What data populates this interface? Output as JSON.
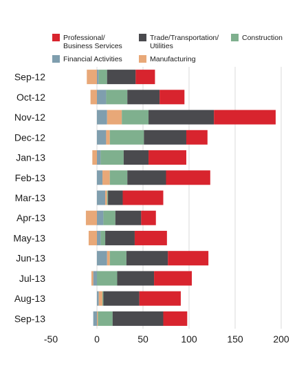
{
  "chart_data": {
    "type": "bar",
    "orientation": "horizontal",
    "stacked": true,
    "title": "",
    "xlabel": "",
    "ylabel": "",
    "xlim": [
      -50,
      200
    ],
    "xticks": [
      -50,
      0,
      50,
      100,
      150,
      200
    ],
    "grid": "vertical",
    "legend_position": "top",
    "categories": [
      "Sep-12",
      "Oct-12",
      "Nov-12",
      "Dec-12",
      "Jan-13",
      "Feb-13",
      "Mar-13",
      "Apr-13",
      "May-13",
      "Jun-13",
      "Jul-13",
      "Aug-13",
      "Sep-13"
    ],
    "series": [
      {
        "name": "Financial Activities",
        "legend_lines": [
          "Financial Activities"
        ],
        "color": "#7f9eae",
        "values": [
          2,
          10,
          11,
          10,
          4,
          6,
          9,
          7,
          4,
          11,
          -4,
          2,
          -4
        ]
      },
      {
        "name": "Manufacturing",
        "legend_lines": [
          "Manufacturing"
        ],
        "color": "#e8a878",
        "values": [
          -11,
          -7,
          16,
          4,
          -5,
          8,
          2,
          -12,
          -9,
          3,
          -2,
          4,
          1
        ]
      },
      {
        "name": "Construction",
        "legend_lines": [
          "Construction"
        ],
        "color": "#7fb08e",
        "values": [
          9,
          23,
          29,
          37,
          25,
          19,
          1,
          13,
          5,
          18,
          22,
          1,
          16
        ]
      },
      {
        "name": "Trade/Transportation/ Utilities",
        "legend_lines": [
          "Trade/Transportation/",
          "Utilities"
        ],
        "color": "#4a4a4e",
        "values": [
          31,
          35,
          71,
          46,
          27,
          42,
          16,
          28,
          32,
          45,
          40,
          39,
          55
        ]
      },
      {
        "name": "Professional/ Business Services",
        "legend_lines": [
          "Professional/",
          "Business Services"
        ],
        "color": "#d8242e",
        "values": [
          21,
          27,
          67,
          23,
          41,
          48,
          44,
          16,
          35,
          44,
          41,
          45,
          26
        ]
      }
    ],
    "legend_order": [
      4,
      3,
      2,
      0,
      1
    ]
  }
}
